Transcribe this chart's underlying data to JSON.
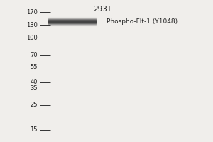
{
  "title": "293T",
  "band_label": "Phospho-Flt-1 (Y1048)",
  "background_color": "#f0eeeb",
  "ladder_marks": [
    170,
    130,
    100,
    70,
    55,
    40,
    35,
    25,
    15
  ],
  "band_color": "#444444",
  "tick_line_color": "#333333",
  "text_color": "#222222",
  "label_fontsize": 6.0,
  "title_fontsize": 7.5,
  "band_label_fontsize": 6.5,
  "fig_width": 3.0,
  "fig_height": 2.0,
  "dpi": 100
}
